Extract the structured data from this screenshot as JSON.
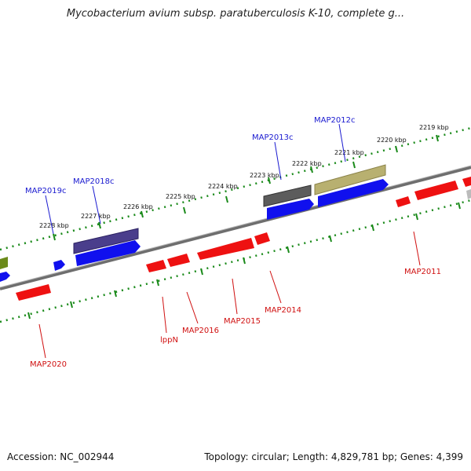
{
  "title": "Mycobacterium avium subsp. paratuberculosis K-10, complete g...",
  "footer": {
    "accession": "Accession: NC_002944",
    "summary": "Topology: circular; Length: 4,829,781 bp; Genes: 4,399"
  },
  "colors": {
    "forward_label": "#1a1ad0",
    "reverse_label": "#d01010",
    "scale_tick": "#1a8a1a",
    "backbone": "#888888",
    "cds_blue": "#1010ee",
    "cds_red": "#ee1111"
  },
  "scale": [
    "2219 kbp",
    "2220 kbp",
    "2221 kbp",
    "2222 kbp",
    "2223 kbp",
    "2224 kbp",
    "2225 kbp",
    "2226 kbp",
    "2227 kbp",
    "2228 kbp"
  ],
  "forward_labels": [
    "MAP2012c",
    "MAP2013c",
    "MAP2018c",
    "MAP2019c"
  ],
  "reverse_labels": [
    "MAP2011",
    "MAP2014",
    "MAP2015",
    "MAP2016",
    "lppN",
    "MAP2020"
  ],
  "icons": [
    "genome-map-diagram"
  ]
}
